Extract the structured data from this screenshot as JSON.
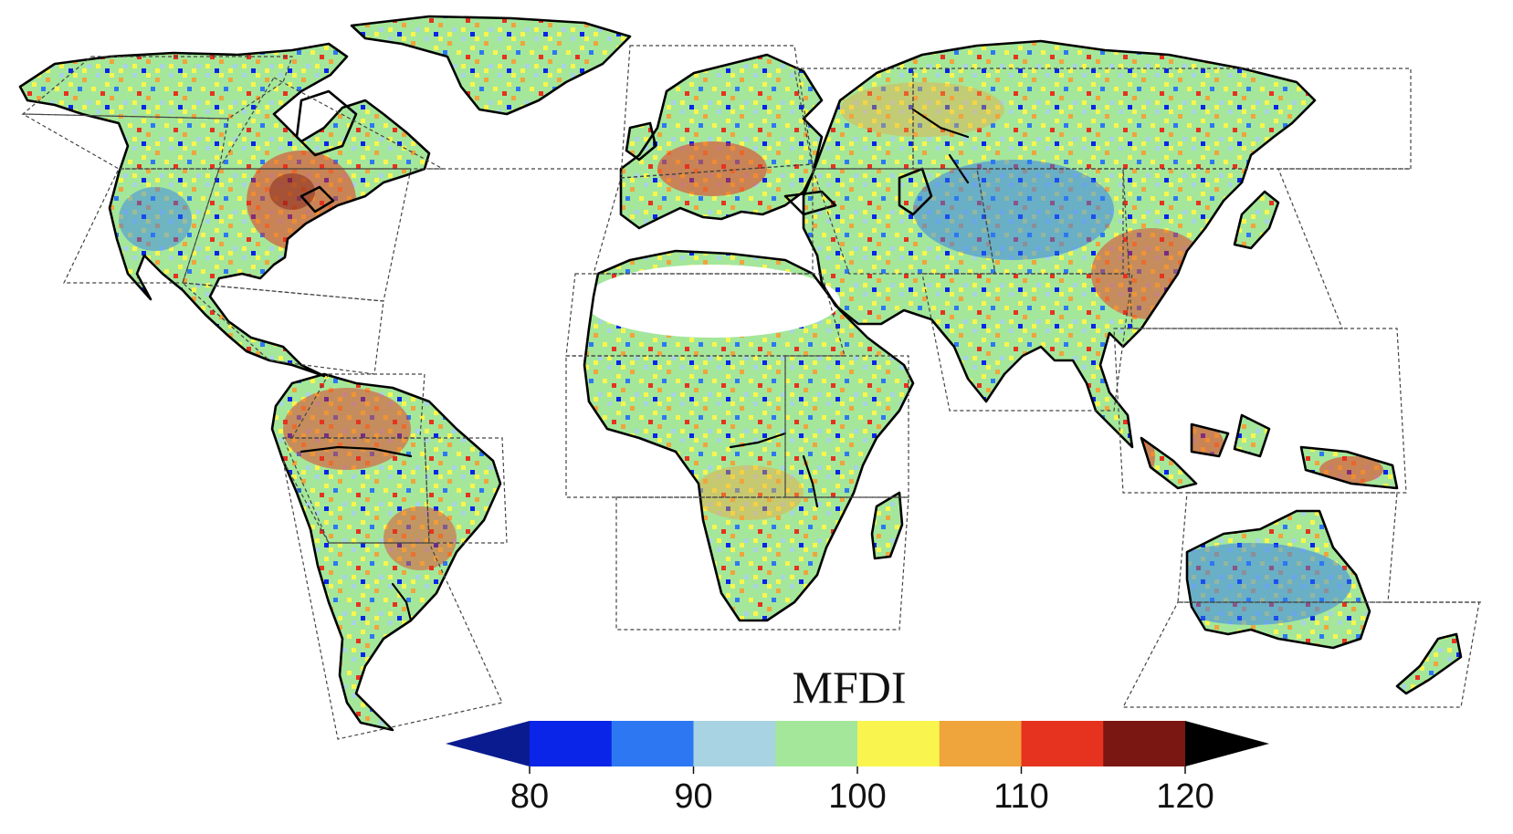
{
  "colorbar": {
    "title": "MFDI",
    "ticks": [
      "80",
      "90",
      "100",
      "110",
      "120"
    ],
    "tick_values": [
      80,
      90,
      100,
      110,
      120
    ],
    "bins": [
      {
        "from": 75,
        "to": 80,
        "color": "#0a1b8f"
      },
      {
        "from": 80,
        "to": 85,
        "color": "#0a24e8"
      },
      {
        "from": 85,
        "to": 90,
        "color": "#2d78f2"
      },
      {
        "from": 90,
        "to": 95,
        "color": "#a8d3e3"
      },
      {
        "from": 95,
        "to": 100,
        "color": "#a4e79a"
      },
      {
        "from": 100,
        "to": 105,
        "color": "#f9f54e"
      },
      {
        "from": 105,
        "to": 110,
        "color": "#efa43c"
      },
      {
        "from": 110,
        "to": 115,
        "color": "#e5331f"
      },
      {
        "from": 115,
        "to": 120,
        "color": "#7a1712"
      },
      {
        "from": 120,
        "to": 125,
        "color": "#000000"
      }
    ],
    "extends": "both"
  },
  "legend": {
    "colors": {
      "below_80": "#0a1b8f",
      "80_85": "#0a24e8",
      "85_90": "#2d78f2",
      "90_95": "#a8d3e3",
      "95_100": "#a4e79a",
      "100_105": "#f9f54e",
      "105_110": "#efa43c",
      "110_115": "#e5331f",
      "115_120": "#7a1712",
      "above_120": "#000000"
    }
  }
}
